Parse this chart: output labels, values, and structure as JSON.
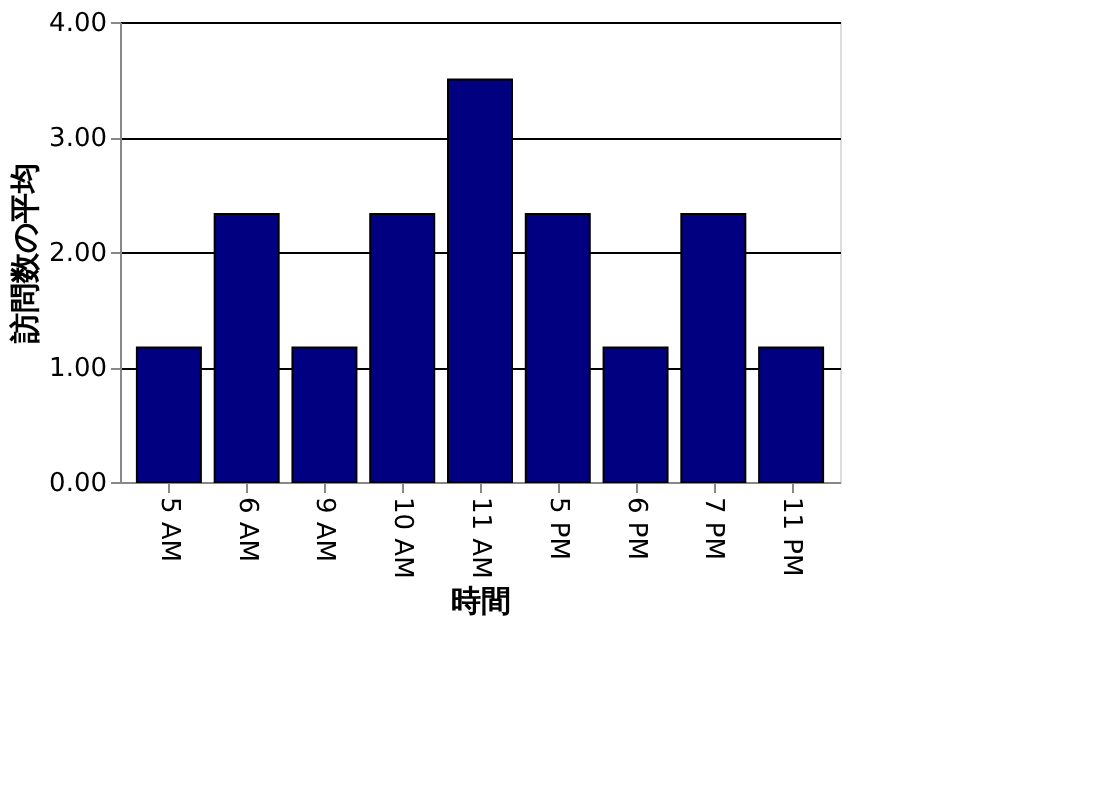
{
  "chart_data": {
    "type": "bar",
    "xlabel": "時間",
    "ylabel": "訪問数の平均",
    "categories": [
      "5 AM",
      "6 AM",
      "9 AM",
      "10 AM",
      "11 AM",
      "5 PM",
      "6 PM",
      "7 PM",
      "11 PM"
    ],
    "values": [
      1.17,
      2.33,
      1.17,
      2.33,
      3.5,
      2.33,
      1.17,
      2.33,
      1.17
    ],
    "color": "#000080",
    "ylim": [
      0,
      4
    ],
    "yticks": [
      {
        "value": 0,
        "label": "0.00"
      },
      {
        "value": 1,
        "label": "1.00"
      },
      {
        "value": 2,
        "label": "2.00"
      },
      {
        "value": 3,
        "label": "3.00"
      },
      {
        "value": 4,
        "label": "4.00"
      }
    ],
    "grid": "y"
  }
}
